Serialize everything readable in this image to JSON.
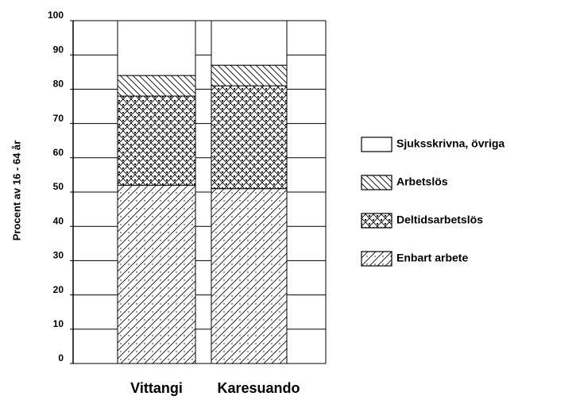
{
  "chart_data": {
    "type": "stacked_bar",
    "y_label": "Procent av 16 - 64 år",
    "categories": [
      "Vittangi",
      "Karesuando"
    ],
    "series": [
      {
        "name": "Enbart arbete",
        "pattern": "diagonal-dots",
        "values": [
          52,
          51
        ]
      },
      {
        "name": "Deltidsarbetslös",
        "pattern": "crosshatch-dots",
        "values": [
          26,
          30
        ]
      },
      {
        "name": "Arbetslös",
        "pattern": "backdiagonal",
        "values": [
          6,
          6
        ]
      },
      {
        "name": "Sjuksskrivna, övriga",
        "pattern": "none",
        "values": [
          16,
          13
        ]
      }
    ],
    "ylim": [
      0,
      100
    ],
    "yticks": [
      0,
      10,
      20,
      30,
      40,
      50,
      60,
      70,
      80,
      90,
      100
    ],
    "grid": true,
    "legend": "right"
  }
}
